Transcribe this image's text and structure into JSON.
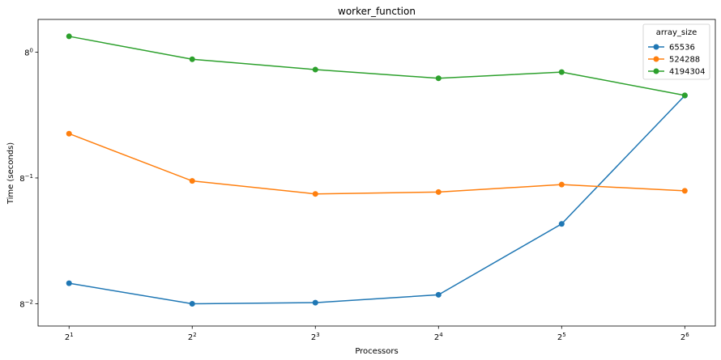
{
  "chart_data": {
    "type": "line",
    "title": "worker_function",
    "xlabel": "Processors",
    "ylabel": "Time (seconds)",
    "x": [
      2,
      4,
      8,
      16,
      32,
      64
    ],
    "x_scale": "log2",
    "y_scale": "log8",
    "ylim": [
      0.0108,
      1.72
    ],
    "xlim": [
      1.68,
      76
    ],
    "xtick_labels": [
      {
        "base": "2",
        "exp": "1"
      },
      {
        "base": "2",
        "exp": "2"
      },
      {
        "base": "2",
        "exp": "3"
      },
      {
        "base": "2",
        "exp": "4"
      },
      {
        "base": "2",
        "exp": "5"
      },
      {
        "base": "2",
        "exp": "6"
      }
    ],
    "ytick_labels": [
      {
        "value": 1,
        "base": "8",
        "exp": "0"
      },
      {
        "value": 0.125,
        "base": "8",
        "exp": "−1"
      },
      {
        "value": 0.015625,
        "base": "8",
        "exp": "−2"
      }
    ],
    "legend": {
      "title": "array_size",
      "position": "top-right"
    },
    "series": [
      {
        "name": "65536",
        "color": "#1f77b4",
        "values": [
          0.0219,
          0.0156,
          0.0159,
          0.0181,
          0.0585,
          0.488
        ]
      },
      {
        "name": "524288",
        "color": "#ff7f0e",
        "values": [
          0.26,
          0.119,
          0.096,
          0.099,
          0.112,
          0.101
        ]
      },
      {
        "name": "4194304",
        "color": "#2ca02c",
        "values": [
          1.3,
          0.89,
          0.75,
          0.65,
          0.72,
          0.49
        ]
      }
    ],
    "grid": false
  }
}
